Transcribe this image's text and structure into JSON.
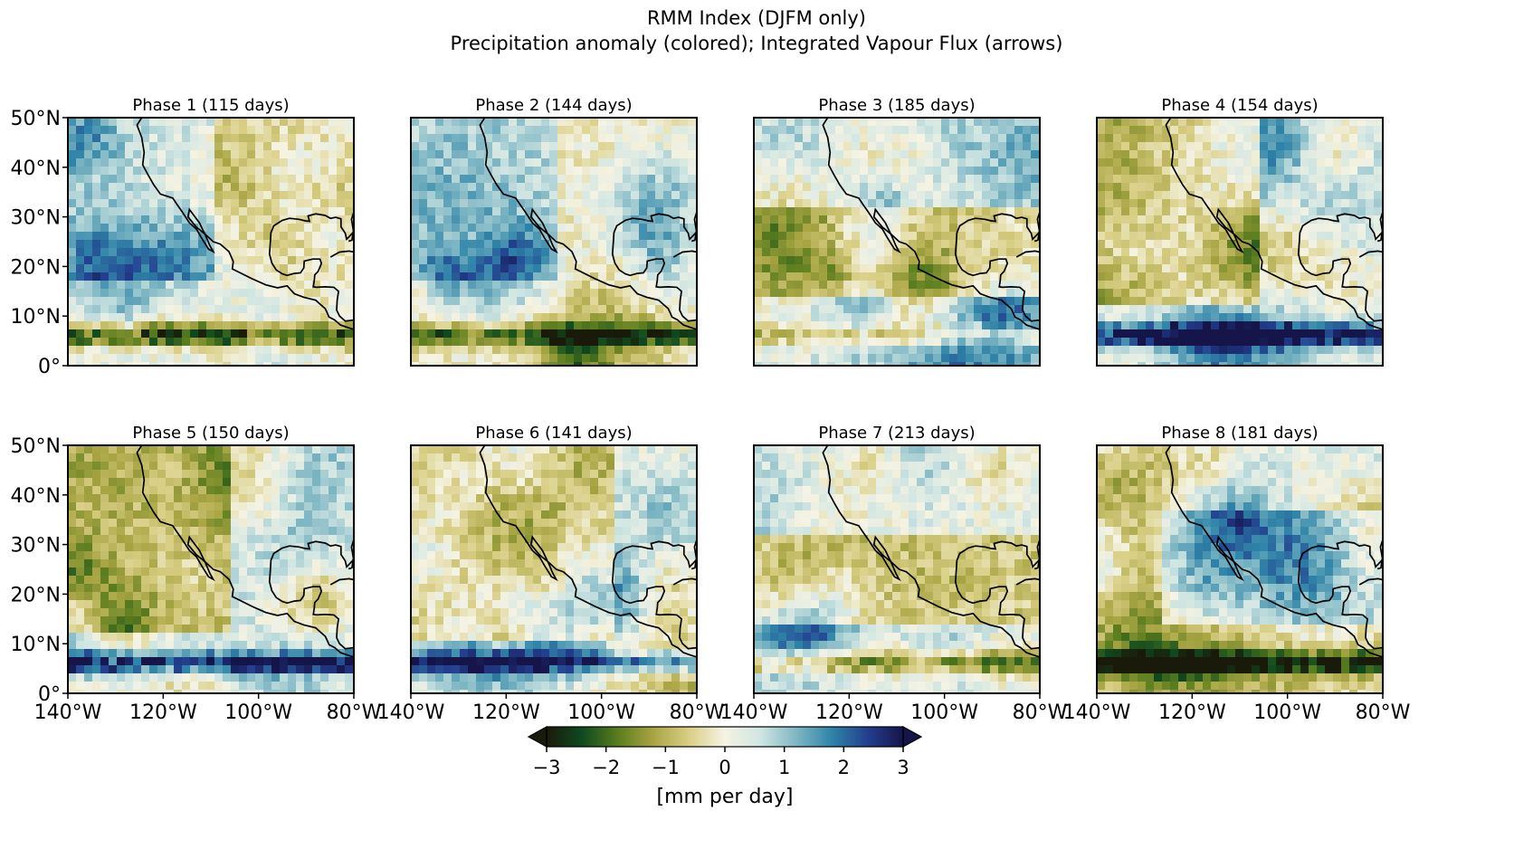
{
  "figure": {
    "title_line1": "RMM Index (DJFM only)",
    "title_line2": "Precipitation anomaly (colored); Integrated Vapour Flux (arrows)"
  },
  "panels": [
    {
      "title": "Phase 1 (115 days)",
      "seed": 11,
      "itcz": -2.6,
      "pattern": "wet-west"
    },
    {
      "title": "Phase 2 (144 days)",
      "seed": 23,
      "itcz": -2.1,
      "pattern": "wet-west"
    },
    {
      "title": "Phase 3 (185 days)",
      "seed": 37,
      "itcz": -1.2,
      "pattern": "mixed"
    },
    {
      "title": "Phase 4 (154 days)",
      "seed": 41,
      "itcz": 2.8,
      "pattern": "dry-west"
    },
    {
      "title": "Phase 5 (150 days)",
      "seed": 53,
      "itcz": 2.5,
      "pattern": "dry-west"
    },
    {
      "title": "Phase 6 (141 days)",
      "seed": 67,
      "itcz": 2.2,
      "pattern": "dry"
    },
    {
      "title": "Phase 7 (213 days)",
      "seed": 79,
      "itcz": -1.8,
      "pattern": "mixed"
    },
    {
      "title": "Phase 8 (181 days)",
      "seed": 83,
      "itcz": -2.5,
      "pattern": "wet-center"
    }
  ],
  "axes": {
    "lat_ticks": [
      "50°N",
      "40°N",
      "30°N",
      "20°N",
      "10°N",
      "0°"
    ],
    "lon_ticks": [
      "140°W",
      "120°W",
      "100°W",
      "80°W"
    ],
    "lat_range": [
      0,
      50
    ],
    "lon_range": [
      -140,
      -80
    ]
  },
  "colorbar": {
    "ticks": [
      "−3",
      "−2",
      "−1",
      "0",
      "1",
      "2",
      "3"
    ],
    "label": "[mm per day]",
    "range": [
      -3,
      3
    ],
    "colormap_stops": [
      "#1a1a0a",
      "#0f4a1f",
      "#5a7d1e",
      "#a9a544",
      "#d9cf86",
      "#f5f3e3",
      "#cfe5e2",
      "#7fb7c4",
      "#2f84a8",
      "#233f8f",
      "#15154a"
    ]
  }
}
